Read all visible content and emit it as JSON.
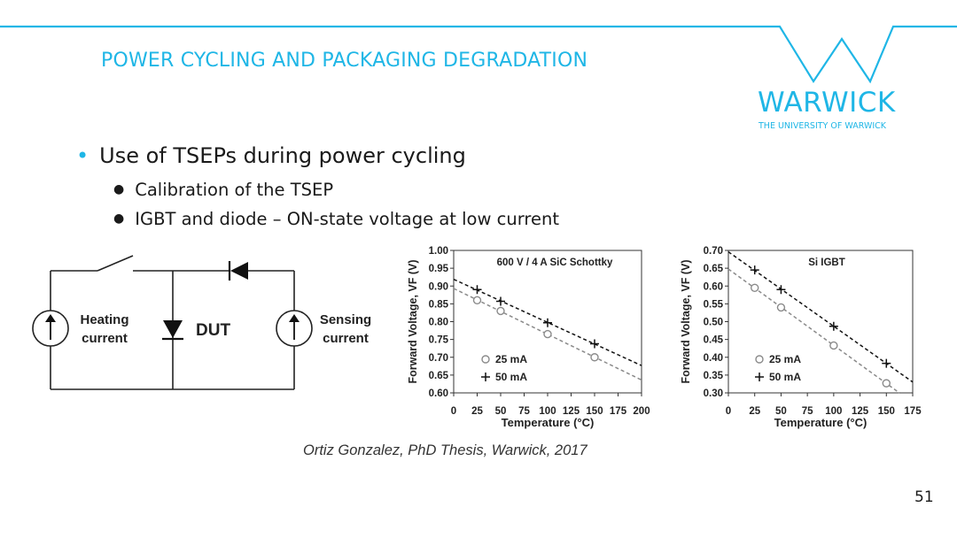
{
  "header": {
    "title": "POWER CYCLING AND PACKAGING DEGRADATION",
    "logo_word": "WARWICK",
    "logo_subtitle": "THE UNIVERSITY OF WARWICK",
    "accent_color": "#1fb6e6"
  },
  "content": {
    "bullet_main": "Use of TSEPs during power cycling",
    "sub_bullets": [
      "Calibration of the TSEP",
      "IGBT and diode – ON-state voltage at low current"
    ]
  },
  "circuit": {
    "heating_label_line1": "Heating",
    "heating_label_line2": "current",
    "dut_label": "DUT",
    "sensing_label_line1": "Sensing",
    "sensing_label_line2": "current"
  },
  "chart_data": [
    {
      "type": "scatter",
      "title": "600 V / 4 A SiC Schottky",
      "xlabel": "Temperature (°C)",
      "ylabel": "Forward Voltage, VF (V)",
      "xlim": [
        0,
        200
      ],
      "ylim": [
        0.6,
        1.0
      ],
      "xticks": [
        "0",
        "25",
        "50",
        "75",
        "100",
        "125",
        "150",
        "175",
        "200"
      ],
      "yticks": [
        "0.60",
        "0.65",
        "0.70",
        "0.75",
        "0.80",
        "0.85",
        "0.90",
        "0.95",
        "1.00"
      ],
      "legend_position": "bottom-left",
      "series": [
        {
          "name": "25 mA",
          "marker": "circle",
          "color": "#8a8a8a",
          "x": [
            25,
            50,
            100,
            150
          ],
          "y": [
            0.86,
            0.83,
            0.765,
            0.7
          ]
        },
        {
          "name": "50 mA",
          "marker": "plus",
          "color": "#111111",
          "x": [
            25,
            50,
            100,
            150
          ],
          "y": [
            0.89,
            0.857,
            0.797,
            0.738
          ]
        }
      ]
    },
    {
      "type": "scatter",
      "title": "Si IGBT",
      "xlabel": "Temperature (°C)",
      "ylabel": "Forward Voltage, VF (V)",
      "xlim": [
        0,
        175
      ],
      "ylim": [
        0.3,
        0.7
      ],
      "xticks": [
        "0",
        "25",
        "50",
        "75",
        "100",
        "125",
        "150",
        "175"
      ],
      "yticks": [
        "0.30",
        "0.35",
        "0.40",
        "0.45",
        "0.50",
        "0.55",
        "0.60",
        "0.65",
        "0.70"
      ],
      "legend_position": "bottom-left",
      "series": [
        {
          "name": "25 mA",
          "marker": "circle",
          "color": "#8a8a8a",
          "x": [
            25,
            50,
            100,
            150
          ],
          "y": [
            0.595,
            0.54,
            0.433,
            0.327
          ]
        },
        {
          "name": "50 mA",
          "marker": "plus",
          "color": "#111111",
          "x": [
            25,
            50,
            100,
            150
          ],
          "y": [
            0.645,
            0.59,
            0.487,
            0.383
          ]
        }
      ]
    }
  ],
  "citation": "Ortiz Gonzalez, PhD Thesis, Warwick, 2017",
  "page_number": "51"
}
